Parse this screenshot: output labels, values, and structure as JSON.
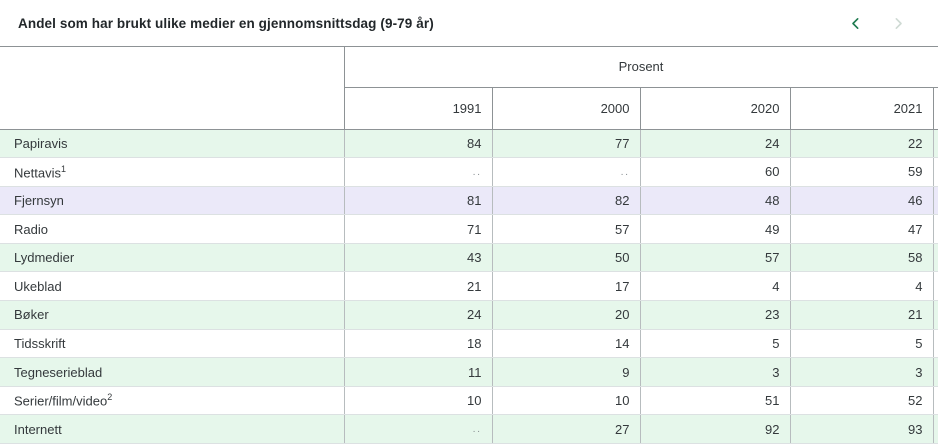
{
  "title": "Andel som har brukt ulike medier en gjennomsnittsdag (9-79 år)",
  "pagination": {
    "prev_icon": "chevron-left-icon",
    "next_icon": "chevron-right-icon",
    "prev_enabled": true,
    "next_enabled": false
  },
  "table": {
    "group_header": "Prosent",
    "columns": [
      "1991",
      "2000",
      "2020",
      "2021"
    ],
    "missing_value_marker": "..",
    "rows": [
      {
        "label": "Papiravis",
        "values": [
          "84",
          "77",
          "24",
          "22"
        ]
      },
      {
        "label": "Nettavis",
        "sup": "1",
        "values": [
          "..",
          "..",
          "60",
          "59"
        ]
      },
      {
        "label": "Fjernsyn",
        "values": [
          "81",
          "82",
          "48",
          "46"
        ],
        "highlighted": true
      },
      {
        "label": "Radio",
        "values": [
          "71",
          "57",
          "49",
          "47"
        ]
      },
      {
        "label": "Lydmedier",
        "values": [
          "43",
          "50",
          "57",
          "58"
        ]
      },
      {
        "label": "Ukeblad",
        "values": [
          "21",
          "17",
          "4",
          "4"
        ]
      },
      {
        "label": "Bøker",
        "values": [
          "24",
          "20",
          "23",
          "21"
        ]
      },
      {
        "label": "Tidsskrift",
        "values": [
          "18",
          "14",
          "5",
          "5"
        ]
      },
      {
        "label": "Tegneserieblad",
        "values": [
          "11",
          "9",
          "3",
          "3"
        ]
      },
      {
        "label": "Serier/film/video",
        "sup": "2",
        "values": [
          "10",
          "10",
          "51",
          "52"
        ]
      },
      {
        "label": "Internett",
        "values": [
          "..",
          "27",
          "92",
          "93"
        ]
      }
    ]
  },
  "colors": {
    "accent_green": "#1e7a4f",
    "disabled_chevron": "#cfdad4",
    "row_stripe_green": "#e6f7eb",
    "highlight_lavender": "#ebe9f9",
    "header_border": "#8d9295",
    "col_divider": "#b7bcbe",
    "row_divider": "#dce1e2",
    "text": "#34393c"
  }
}
